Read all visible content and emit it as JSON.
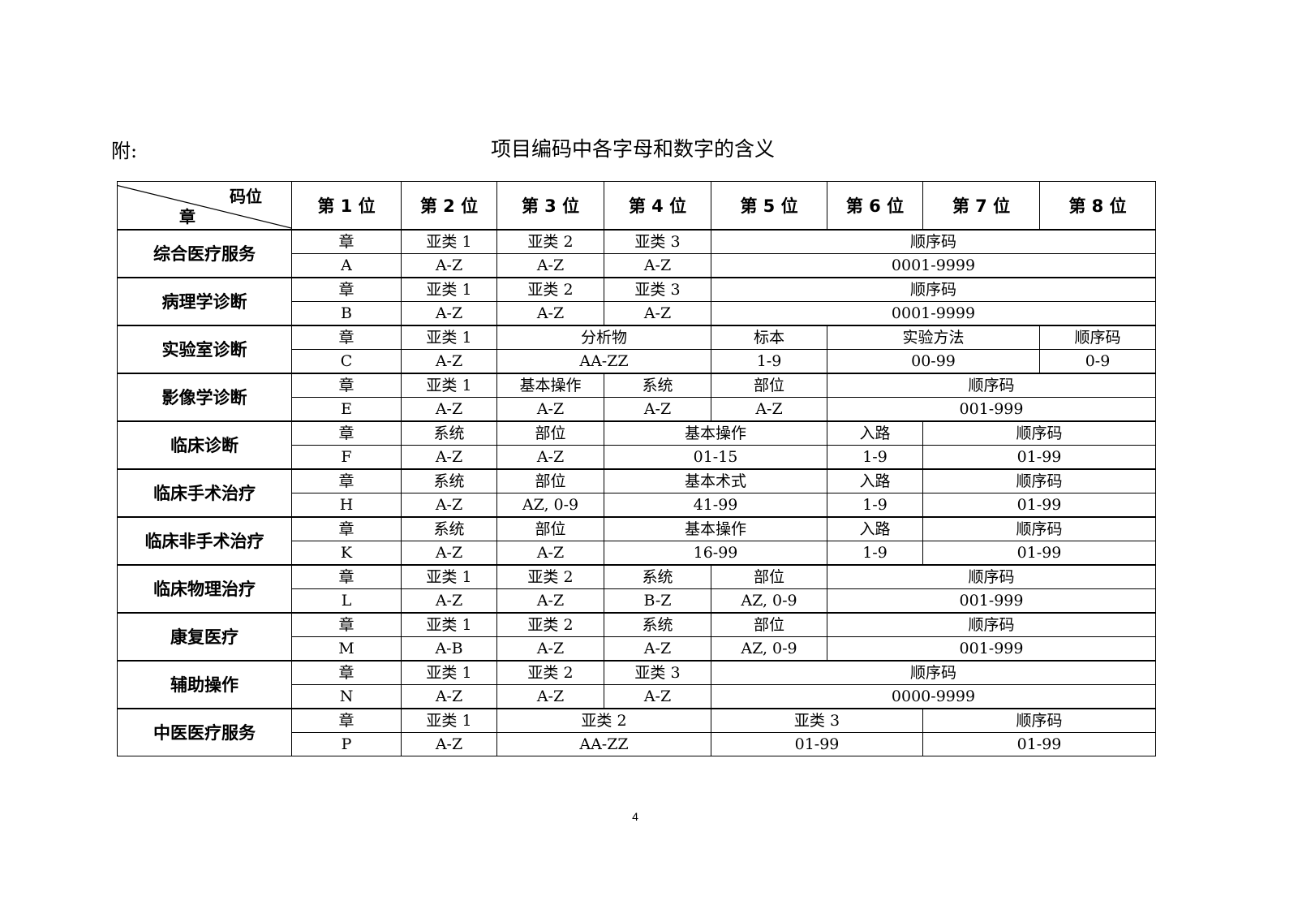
{
  "prefix": "附:",
  "title": "项目编码中各字母和数字的含义",
  "header": {
    "corner_top": "码位",
    "corner_bottom": "章",
    "positions": [
      "第 1 位",
      "第 2 位",
      "第 3 位",
      "第 4 位",
      "第 5 位",
      "第 6 位",
      "第 7 位",
      "第 8 位"
    ]
  },
  "rows": [
    {
      "label": "综合医疗服务",
      "top": [
        {
          "text": "章",
          "span": 1
        },
        {
          "text": "亚类 1",
          "span": 1
        },
        {
          "text": "亚类 2",
          "span": 1
        },
        {
          "text": "亚类 3",
          "span": 1
        },
        {
          "text": "顺序码",
          "span": 4
        }
      ],
      "bottom": [
        {
          "text": "A",
          "span": 1
        },
        {
          "text": "A-Z",
          "span": 1
        },
        {
          "text": "A-Z",
          "span": 1
        },
        {
          "text": "A-Z",
          "span": 1
        },
        {
          "text": "0001-9999",
          "span": 4
        }
      ]
    },
    {
      "label": "病理学诊断",
      "top": [
        {
          "text": "章",
          "span": 1
        },
        {
          "text": "亚类 1",
          "span": 1
        },
        {
          "text": "亚类 2",
          "span": 1
        },
        {
          "text": "亚类 3",
          "span": 1
        },
        {
          "text": "顺序码",
          "span": 4
        }
      ],
      "bottom": [
        {
          "text": "B",
          "span": 1
        },
        {
          "text": "A-Z",
          "span": 1
        },
        {
          "text": "A-Z",
          "span": 1
        },
        {
          "text": "A-Z",
          "span": 1
        },
        {
          "text": "0001-9999",
          "span": 4
        }
      ]
    },
    {
      "label": "实验室诊断",
      "top": [
        {
          "text": "章",
          "span": 1
        },
        {
          "text": "亚类 1",
          "span": 1
        },
        {
          "text": "分析物",
          "span": 2
        },
        {
          "text": "标本",
          "span": 1
        },
        {
          "text": "实验方法",
          "span": 2
        },
        {
          "text": "顺序码",
          "span": 1
        }
      ],
      "bottom": [
        {
          "text": "C",
          "span": 1
        },
        {
          "text": "A-Z",
          "span": 1
        },
        {
          "text": "AA-ZZ",
          "span": 2
        },
        {
          "text": "1-9",
          "span": 1
        },
        {
          "text": "00-99",
          "span": 2
        },
        {
          "text": "0-9",
          "span": 1
        }
      ]
    },
    {
      "label": "影像学诊断",
      "top": [
        {
          "text": "章",
          "span": 1
        },
        {
          "text": "亚类 1",
          "span": 1
        },
        {
          "text": "基本操作",
          "span": 1
        },
        {
          "text": "系统",
          "span": 1
        },
        {
          "text": "部位",
          "span": 1
        },
        {
          "text": "顺序码",
          "span": 3
        }
      ],
      "bottom": [
        {
          "text": "E",
          "span": 1
        },
        {
          "text": "A-Z",
          "span": 1
        },
        {
          "text": "A-Z",
          "span": 1
        },
        {
          "text": "A-Z",
          "span": 1
        },
        {
          "text": "A-Z",
          "span": 1
        },
        {
          "text": "001-999",
          "span": 3
        }
      ]
    },
    {
      "label": "临床诊断",
      "top": [
        {
          "text": "章",
          "span": 1
        },
        {
          "text": "系统",
          "span": 1
        },
        {
          "text": "部位",
          "span": 1
        },
        {
          "text": "基本操作",
          "span": 2
        },
        {
          "text": "入路",
          "span": 1
        },
        {
          "text": "顺序码",
          "span": 2
        }
      ],
      "bottom": [
        {
          "text": "F",
          "span": 1
        },
        {
          "text": "A-Z",
          "span": 1
        },
        {
          "text": "A-Z",
          "span": 1
        },
        {
          "text": "01-15",
          "span": 2
        },
        {
          "text": "1-9",
          "span": 1
        },
        {
          "text": "01-99",
          "span": 2
        }
      ]
    },
    {
      "label": "临床手术治疗",
      "top": [
        {
          "text": "章",
          "span": 1
        },
        {
          "text": "系统",
          "span": 1
        },
        {
          "text": "部位",
          "span": 1
        },
        {
          "text": "基本术式",
          "span": 2
        },
        {
          "text": "入路",
          "span": 1
        },
        {
          "text": "顺序码",
          "span": 2
        }
      ],
      "bottom": [
        {
          "text": "H",
          "span": 1
        },
        {
          "text": "A-Z",
          "span": 1
        },
        {
          "text": "AZ, 0-9",
          "span": 1
        },
        {
          "text": "41-99",
          "span": 2
        },
        {
          "text": "1-9",
          "span": 1
        },
        {
          "text": "01-99",
          "span": 2
        }
      ]
    },
    {
      "label": "临床非手术治疗",
      "top": [
        {
          "text": "章",
          "span": 1
        },
        {
          "text": "系统",
          "span": 1
        },
        {
          "text": "部位",
          "span": 1
        },
        {
          "text": "基本操作",
          "span": 2
        },
        {
          "text": "入路",
          "span": 1
        },
        {
          "text": "顺序码",
          "span": 2
        }
      ],
      "bottom": [
        {
          "text": "K",
          "span": 1
        },
        {
          "text": "A-Z",
          "span": 1
        },
        {
          "text": "A-Z",
          "span": 1
        },
        {
          "text": "16-99",
          "span": 2
        },
        {
          "text": "1-9",
          "span": 1
        },
        {
          "text": "01-99",
          "span": 2
        }
      ]
    },
    {
      "label": "临床物理治疗",
      "top": [
        {
          "text": "章",
          "span": 1
        },
        {
          "text": "亚类 1",
          "span": 1
        },
        {
          "text": "亚类 2",
          "span": 1
        },
        {
          "text": "系统",
          "span": 1
        },
        {
          "text": "部位",
          "span": 1
        },
        {
          "text": "顺序码",
          "span": 3
        }
      ],
      "bottom": [
        {
          "text": "L",
          "span": 1
        },
        {
          "text": "A-Z",
          "span": 1
        },
        {
          "text": "A-Z",
          "span": 1
        },
        {
          "text": "B-Z",
          "span": 1
        },
        {
          "text": "AZ, 0-9",
          "span": 1
        },
        {
          "text": "001-999",
          "span": 3
        }
      ]
    },
    {
      "label": "康复医疗",
      "top": [
        {
          "text": "章",
          "span": 1
        },
        {
          "text": "亚类 1",
          "span": 1
        },
        {
          "text": "亚类 2",
          "span": 1
        },
        {
          "text": "系统",
          "span": 1
        },
        {
          "text": "部位",
          "span": 1
        },
        {
          "text": "顺序码",
          "span": 3
        }
      ],
      "bottom": [
        {
          "text": "M",
          "span": 1
        },
        {
          "text": "A-B",
          "span": 1
        },
        {
          "text": "A-Z",
          "span": 1
        },
        {
          "text": "A-Z",
          "span": 1
        },
        {
          "text": "AZ, 0-9",
          "span": 1
        },
        {
          "text": "001-999",
          "span": 3
        }
      ]
    },
    {
      "label": "辅助操作",
      "top": [
        {
          "text": "章",
          "span": 1
        },
        {
          "text": "亚类 1",
          "span": 1
        },
        {
          "text": "亚类 2",
          "span": 1
        },
        {
          "text": "亚类 3",
          "span": 1
        },
        {
          "text": "顺序码",
          "span": 4
        }
      ],
      "bottom": [
        {
          "text": "N",
          "span": 1
        },
        {
          "text": "A-Z",
          "span": 1
        },
        {
          "text": "A-Z",
          "span": 1
        },
        {
          "text": "A-Z",
          "span": 1
        },
        {
          "text": "0000-9999",
          "span": 4
        }
      ]
    },
    {
      "label": "中医医疗服务",
      "top": [
        {
          "text": "章",
          "span": 1
        },
        {
          "text": "亚类 1",
          "span": 1
        },
        {
          "text": "亚类 2",
          "span": 2
        },
        {
          "text": "亚类 3",
          "span": 2
        },
        {
          "text": "顺序码",
          "span": 2
        }
      ],
      "bottom": [
        {
          "text": "P",
          "span": 1
        },
        {
          "text": "A-Z",
          "span": 1
        },
        {
          "text": "AA-ZZ",
          "span": 2
        },
        {
          "text": "01-99",
          "span": 2
        },
        {
          "text": "01-99",
          "span": 2
        }
      ]
    }
  ],
  "page_number": "4"
}
